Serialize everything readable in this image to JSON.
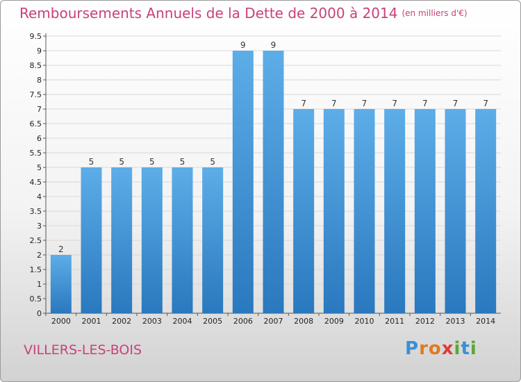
{
  "title": "Remboursements Annuels de la Dette de 2000 à 2014",
  "unit": "(en milliers d'€)",
  "place": "VILLERS-LES-BOIS",
  "logo": {
    "p": "P",
    "r": "r",
    "o": "o",
    "x": "x",
    "i": "i",
    "t": "t",
    "i2": "i"
  },
  "colors": {
    "bar_top": "#5dade8",
    "bar_bottom": "#2a78be",
    "title": "#c8417a"
  },
  "chart_data": {
    "type": "bar",
    "title": "Remboursements Annuels de la Dette de 2000 à 2014",
    "categories": [
      "2000",
      "2001",
      "2002",
      "2003",
      "2004",
      "2005",
      "2006",
      "2007",
      "2008",
      "2009",
      "2010",
      "2011",
      "2012",
      "2013",
      "2014"
    ],
    "values": [
      2,
      5,
      5,
      5,
      5,
      5,
      9,
      9,
      7,
      7,
      7,
      7,
      7,
      7,
      7
    ],
    "yticks": [
      "0",
      "0.5",
      "1",
      "1.5",
      "2",
      "2.5",
      "3",
      "3.5",
      "4",
      "4.5",
      "5",
      "5.5",
      "6",
      "6.5",
      "7",
      "7.5",
      "8",
      "8.5",
      "9",
      "9.5"
    ],
    "ylim": [
      0,
      9.5
    ],
    "grid": true,
    "legend": "none"
  }
}
